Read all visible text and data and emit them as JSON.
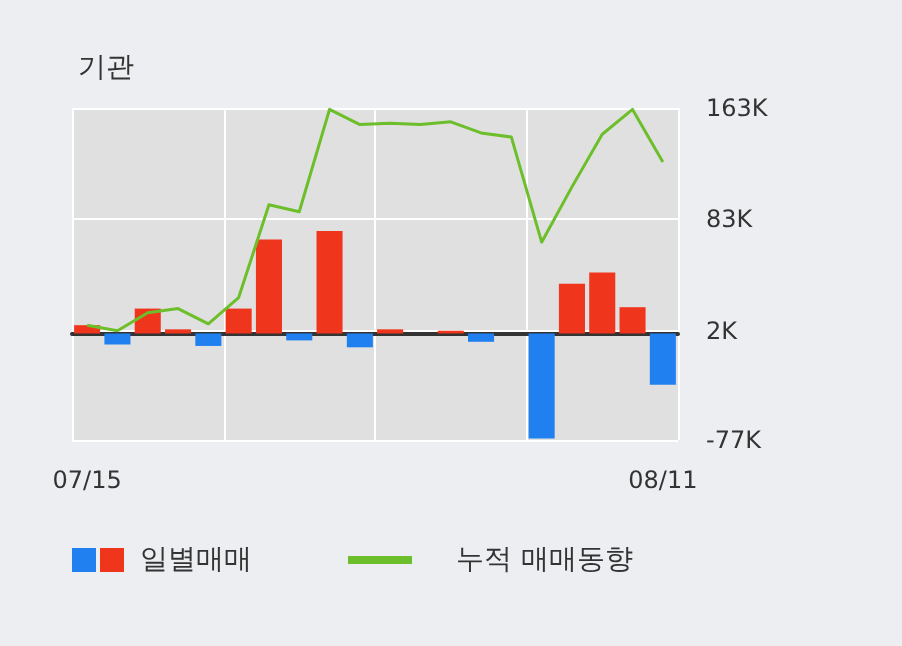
{
  "chart_data": {
    "type": "bar",
    "title": "기관",
    "categories": [
      "07/15",
      null,
      null,
      null,
      null,
      null,
      null,
      null,
      null,
      null,
      null,
      null,
      null,
      null,
      null,
      null,
      null,
      null,
      null,
      "08/11"
    ],
    "series": [
      {
        "name": "일별매매",
        "colors": [
          "#f0351d",
          "#2180f0",
          "#f0351d",
          "#f0351d",
          "#2180f0",
          "#f0351d",
          "#f0351d",
          "#2180f0",
          "#f0351d",
          "#2180f0",
          "#f0351d",
          "#f0351d",
          "#f0351d",
          "#2180f0",
          "#f0351d",
          "#2180f0",
          "#f0351d",
          "#f0351d",
          "#f0351d",
          "#2180f0"
        ],
        "values": [
          6000,
          -8000,
          18000,
          3000,
          -9000,
          18000,
          68000,
          -5000,
          74000,
          -10000,
          3000,
          0,
          2000,
          -6000,
          0,
          -76000,
          36000,
          44000,
          19000,
          -37000
        ]
      },
      {
        "type": "line",
        "name": "누적 매매동향",
        "color": "#6cbf2a",
        "values": [
          6000,
          2000,
          15000,
          18000,
          7000,
          26000,
          93000,
          88000,
          162000,
          151000,
          152000,
          151000,
          153000,
          145000,
          142000,
          66000,
          106000,
          144000,
          162000,
          124000
        ]
      }
    ],
    "ylim": [
      -77000,
      163000
    ],
    "yticks": [
      {
        "value": -77000,
        "label": "-77K"
      },
      {
        "value": 2000,
        "label": "2K"
      },
      {
        "value": 83000,
        "label": "83K"
      },
      {
        "value": 163000,
        "label": "163K"
      }
    ],
    "grid": true,
    "legend": "bottom",
    "marker": "none"
  }
}
